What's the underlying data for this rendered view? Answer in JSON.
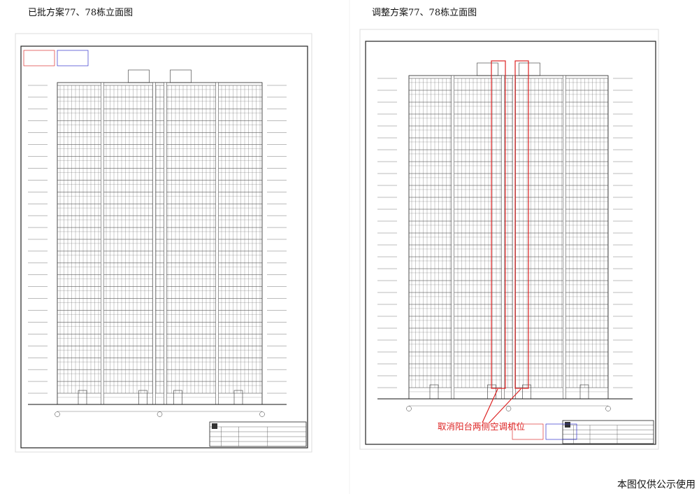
{
  "left": {
    "title": "已批方案77、78栋立面图"
  },
  "right": {
    "title": "调整方案77、78栋立面图",
    "annotation": "取消阳台两侧空调机位"
  },
  "footer": "本图仅供公示使用"
}
